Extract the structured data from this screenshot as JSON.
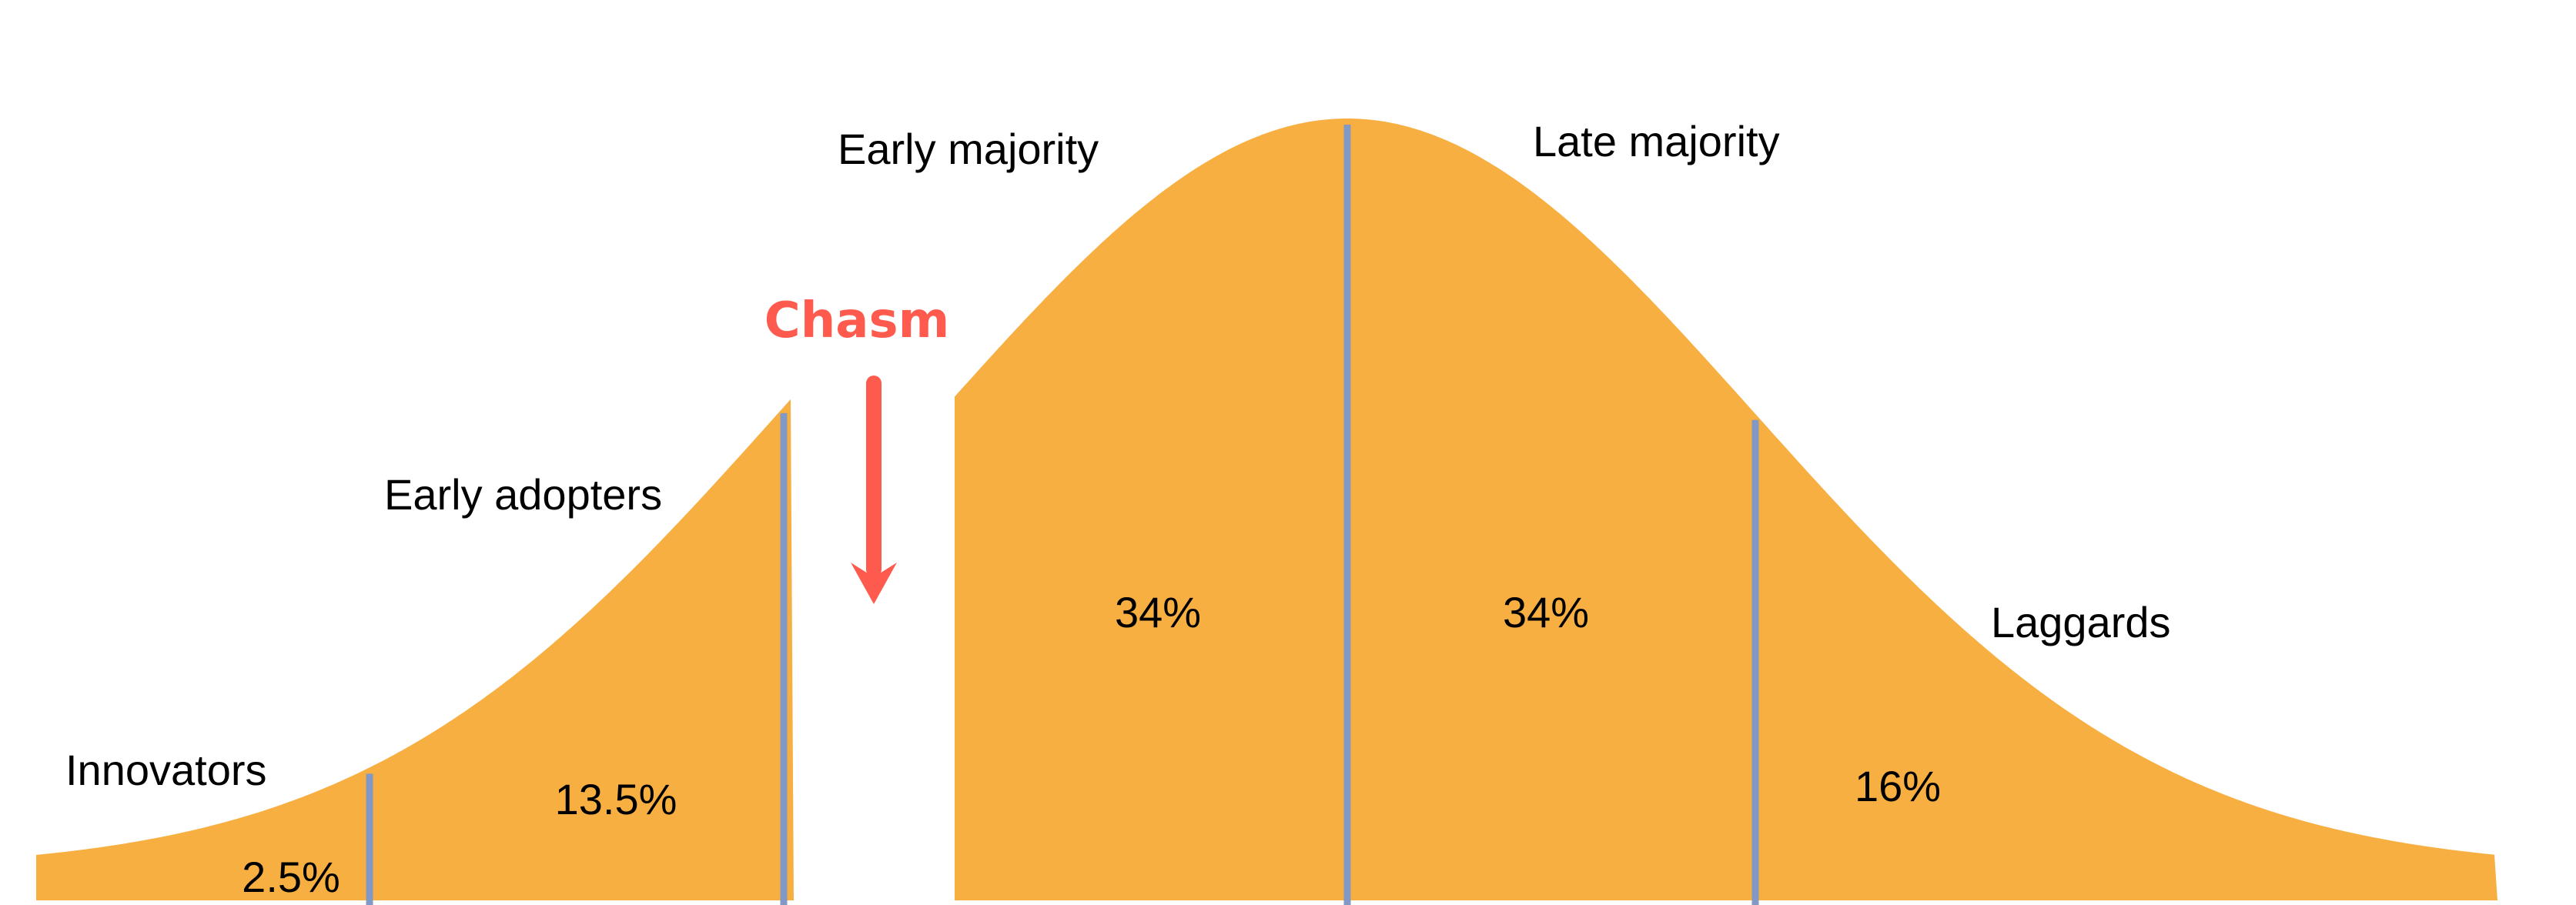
{
  "colors": {
    "curve": "#F8AF42",
    "divider": "#8199C4",
    "chasm": "#FF5A4E",
    "text": "#000000"
  },
  "segments": [
    {
      "name": "Innovators",
      "share": "2.5%"
    },
    {
      "name": "Early adopters",
      "share": "13.5%"
    },
    {
      "name": "Early majority",
      "share": "34%"
    },
    {
      "name": "Late majority",
      "share": "34%"
    },
    {
      "name": "Laggards",
      "share": "16%"
    }
  ],
  "gap": {
    "label": "Chasm",
    "icon": "arrow-down-icon"
  }
}
